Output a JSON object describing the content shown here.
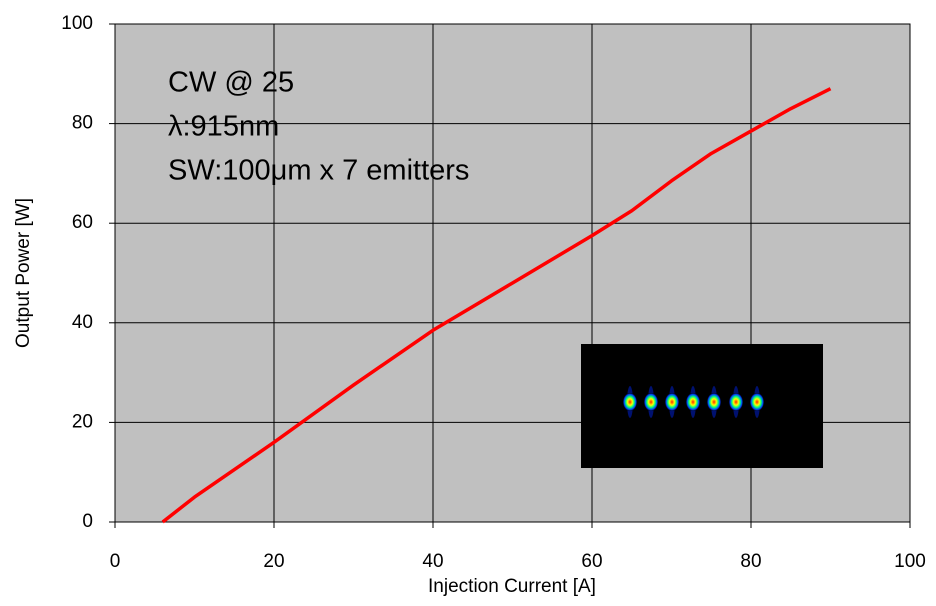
{
  "chart_data": {
    "type": "line",
    "xlabel": "Injection Current [A]",
    "ylabel": "Output Power [W]",
    "annotations": [
      "CW @ 25",
      "λ:915nm",
      "SW:100μm x 7 emitters"
    ],
    "x": [
      6,
      10,
      20,
      30,
      40,
      50,
      60,
      65,
      70,
      75,
      80,
      85,
      90
    ],
    "series": [
      {
        "name": "Output Power",
        "color": "#ff0000",
        "values": [
          0,
          5,
          16,
          27.5,
          38.5,
          48,
          57.5,
          62.5,
          68.5,
          74,
          78.5,
          83,
          87
        ]
      }
    ],
    "xlim": [
      0,
      100
    ],
    "xticks": [
      0,
      20,
      40,
      60,
      80,
      100
    ],
    "ylim": [
      0,
      100
    ],
    "yticks": [
      0,
      20,
      40,
      60,
      80,
      100
    ],
    "grid": true,
    "background": "#c0c0c0"
  }
}
